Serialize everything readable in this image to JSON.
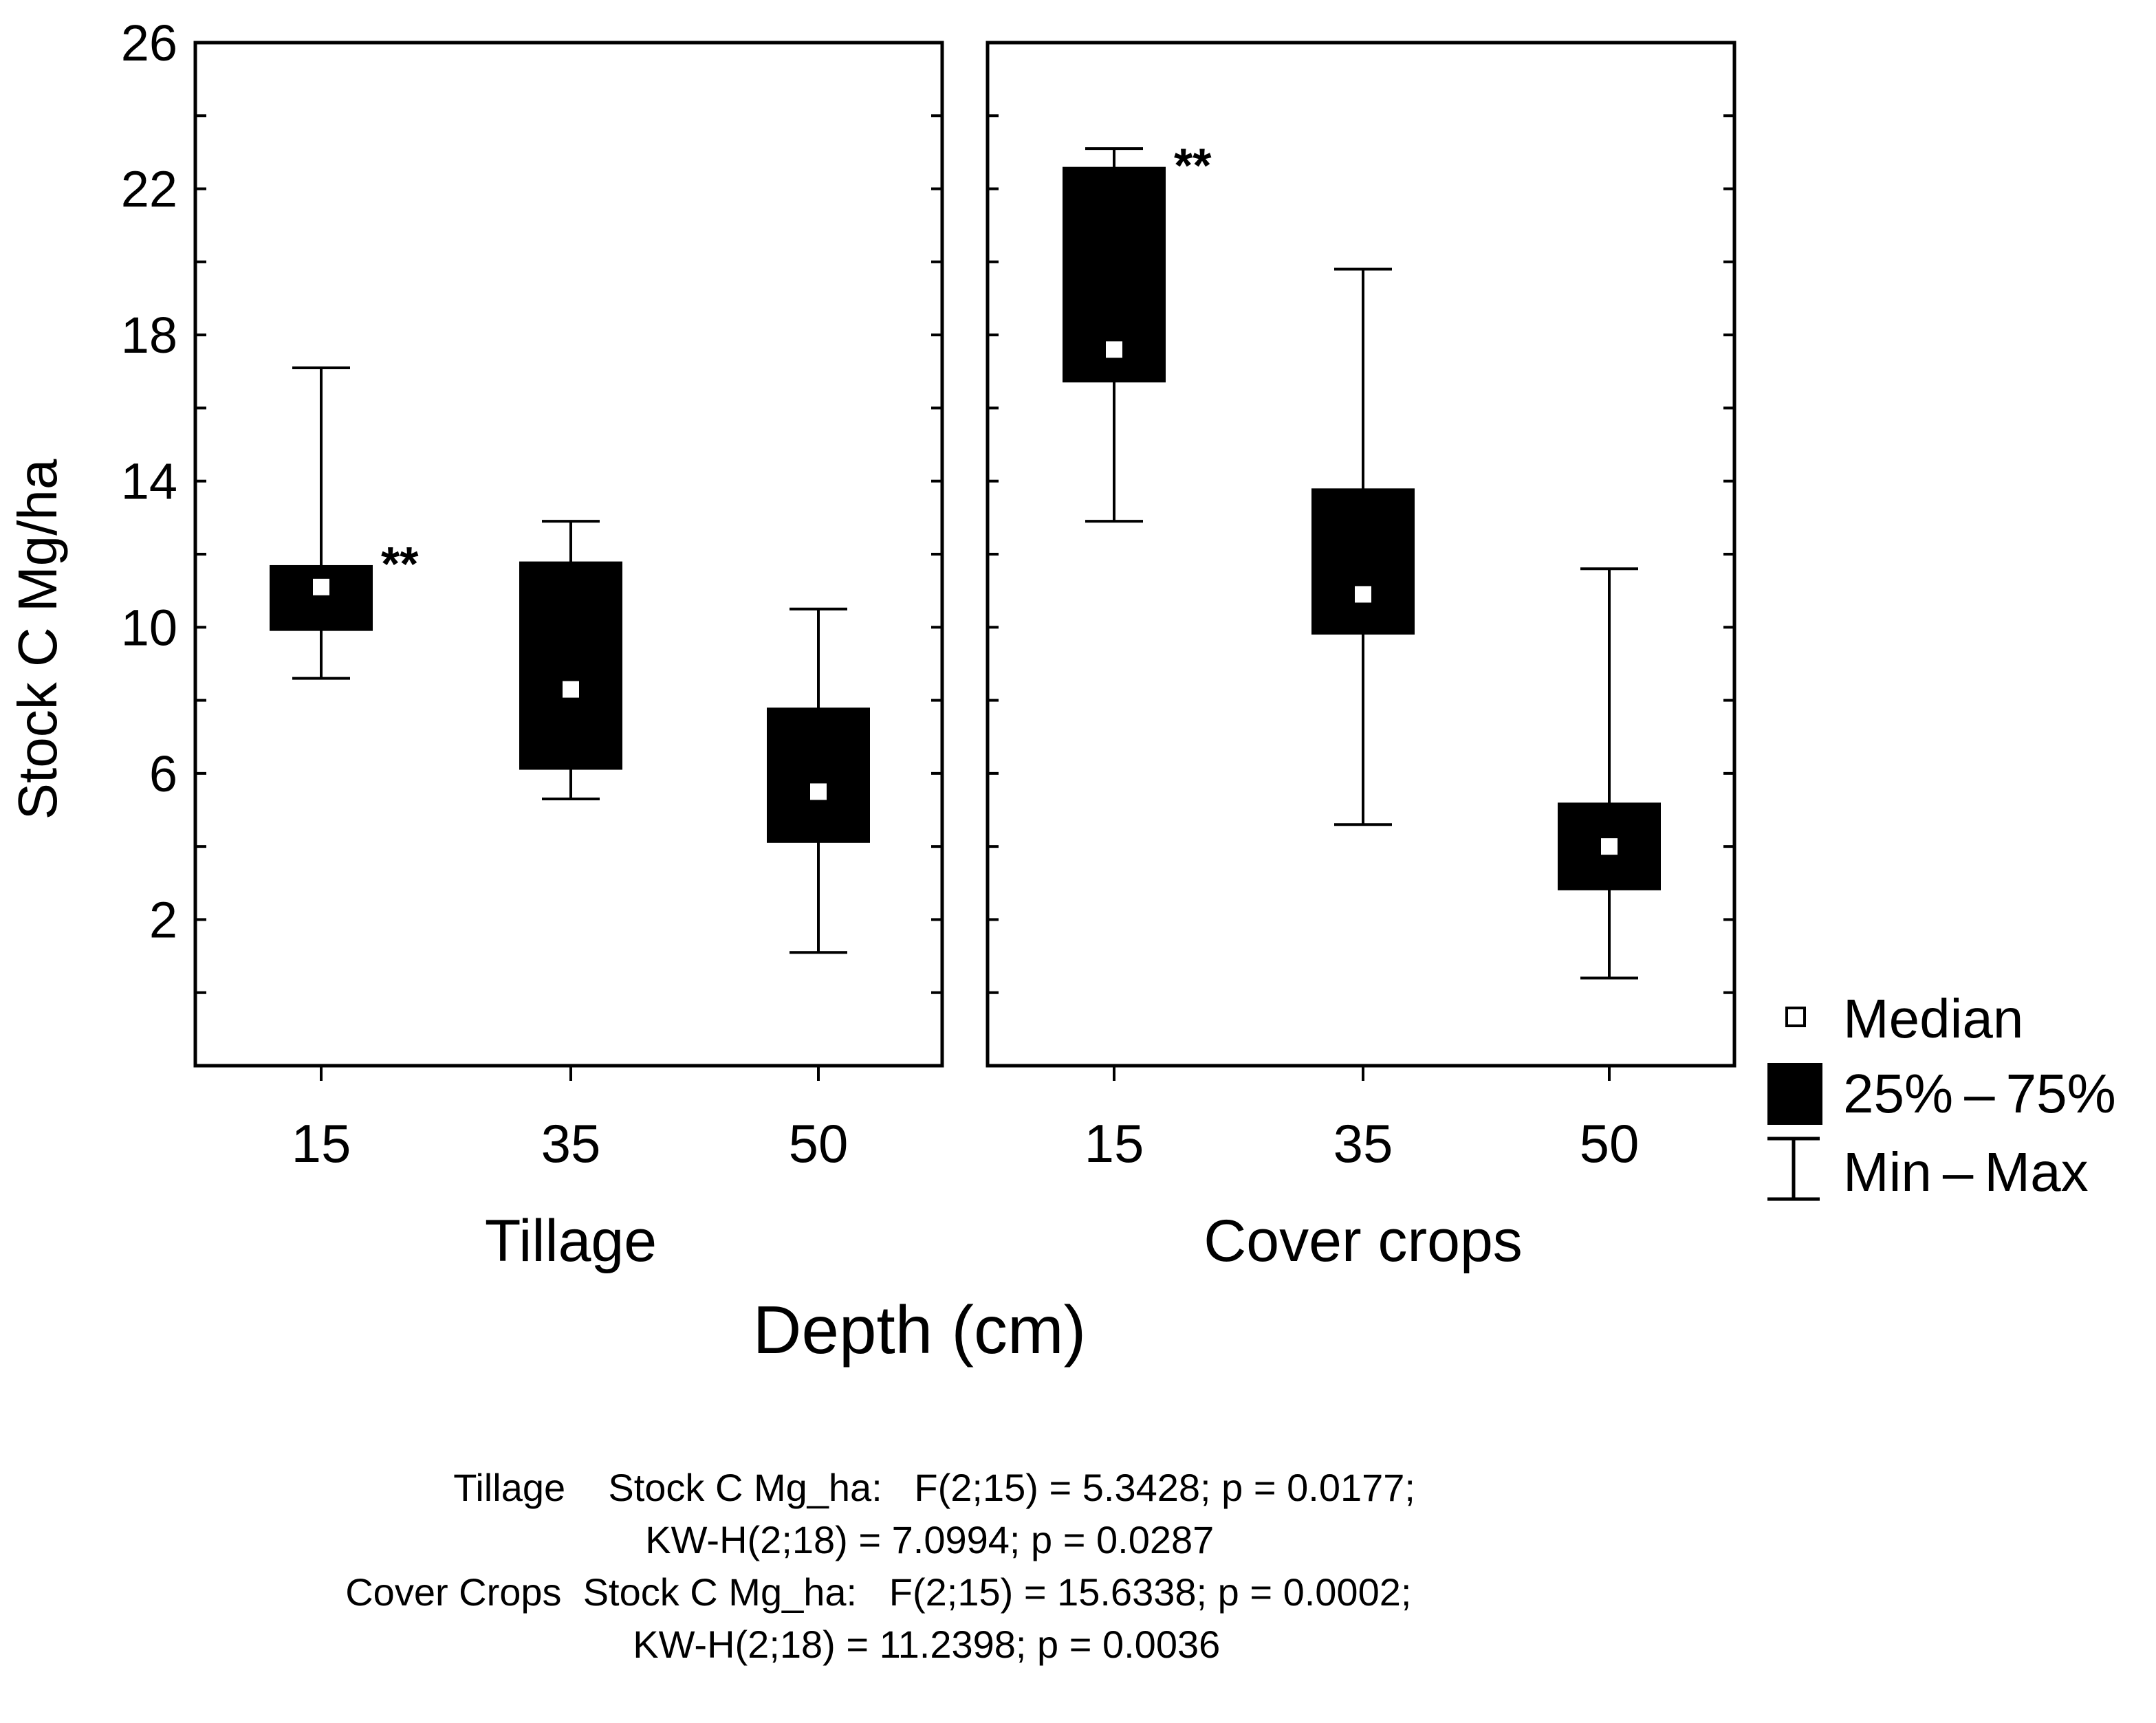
{
  "chart_data": {
    "type": "box",
    "ylabel": "Stock C Mg/ha",
    "xlabel": "Depth (cm)",
    "ylim": [
      -2,
      26
    ],
    "yticks": [
      2,
      6,
      10,
      14,
      18,
      22,
      26
    ],
    "panels": [
      {
        "name": "Tillage",
        "categories": [
          "15",
          "35",
          "50"
        ],
        "boxes": [
          {
            "category": "15",
            "min": 8.6,
            "q1": 9.9,
            "median": 11.1,
            "q3": 11.7,
            "max": 17.1,
            "annotation": "**"
          },
          {
            "category": "35",
            "min": 5.3,
            "q1": 6.1,
            "median": 8.3,
            "q3": 11.8,
            "max": 12.9,
            "annotation": ""
          },
          {
            "category": "50",
            "min": 1.1,
            "q1": 4.1,
            "median": 5.5,
            "q3": 7.8,
            "max": 10.5,
            "annotation": ""
          }
        ]
      },
      {
        "name": "Cover crops",
        "categories": [
          "15",
          "35",
          "50"
        ],
        "boxes": [
          {
            "category": "15",
            "min": 12.9,
            "q1": 16.7,
            "median": 17.6,
            "q3": 22.6,
            "max": 23.1,
            "annotation": "**"
          },
          {
            "category": "35",
            "min": 4.6,
            "q1": 9.8,
            "median": 10.9,
            "q3": 13.8,
            "max": 19.8,
            "annotation": ""
          },
          {
            "category": "50",
            "min": 0.4,
            "q1": 2.8,
            "median": 4.0,
            "q3": 5.2,
            "max": 11.6,
            "annotation": ""
          }
        ]
      }
    ],
    "legend": {
      "position": "right",
      "entries": [
        {
          "symbol": "median",
          "label": "Median"
        },
        {
          "symbol": "box",
          "label": "25% – 75%"
        },
        {
          "symbol": "whisker",
          "label": "Min – Max"
        }
      ]
    }
  },
  "stats": [
    {
      "prefix": "Tillage",
      "text": "Stock C Mg_ha:   F(2;15) = 5.3428; p = 0.0177;"
    },
    {
      "prefix": "",
      "text": "KW-H(2;18) = 7.0994; p = 0.0287"
    },
    {
      "prefix": "Cover Crops",
      "text": "Stock C Mg_ha:   F(2;15) = 15.6338; p = 0.0002;"
    },
    {
      "prefix": "",
      "text": "KW-H(2;18) = 11.2398; p = 0.0036"
    }
  ]
}
